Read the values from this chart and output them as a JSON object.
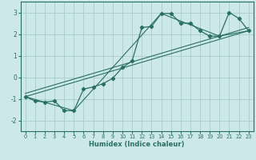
{
  "xlabel": "Humidex (Indice chaleur)",
  "bg_color": "#cce8e8",
  "grid_color": "#aacccc",
  "line_color": "#2a7060",
  "xlim": [
    -0.5,
    23.5
  ],
  "ylim": [
    -2.5,
    3.5
  ],
  "xticks": [
    0,
    1,
    2,
    3,
    4,
    5,
    6,
    7,
    8,
    9,
    10,
    11,
    12,
    13,
    14,
    15,
    16,
    17,
    18,
    19,
    20,
    21,
    22,
    23
  ],
  "yticks": [
    -2,
    -1,
    0,
    1,
    2,
    3
  ],
  "series1_x": [
    0,
    1,
    2,
    3,
    4,
    5,
    6,
    7,
    8,
    9,
    10,
    11,
    12,
    13,
    14,
    15,
    16,
    17,
    18,
    19,
    20,
    21,
    22,
    23
  ],
  "series1_y": [
    -0.9,
    -1.1,
    -1.15,
    -1.1,
    -1.55,
    -1.55,
    -0.55,
    -0.45,
    -0.3,
    -0.05,
    0.45,
    0.75,
    2.3,
    2.35,
    2.95,
    2.95,
    2.5,
    2.5,
    2.15,
    1.9,
    1.9,
    3.0,
    2.72,
    2.15
  ],
  "line2_x": [
    0,
    23
  ],
  "line2_y": [
    -0.9,
    2.15
  ],
  "line3_x": [
    0,
    23
  ],
  "line3_y": [
    -0.75,
    2.3
  ],
  "line4_x": [
    0,
    5,
    14,
    20,
    23
  ],
  "line4_y": [
    -0.9,
    -1.55,
    2.95,
    1.9,
    2.15
  ]
}
